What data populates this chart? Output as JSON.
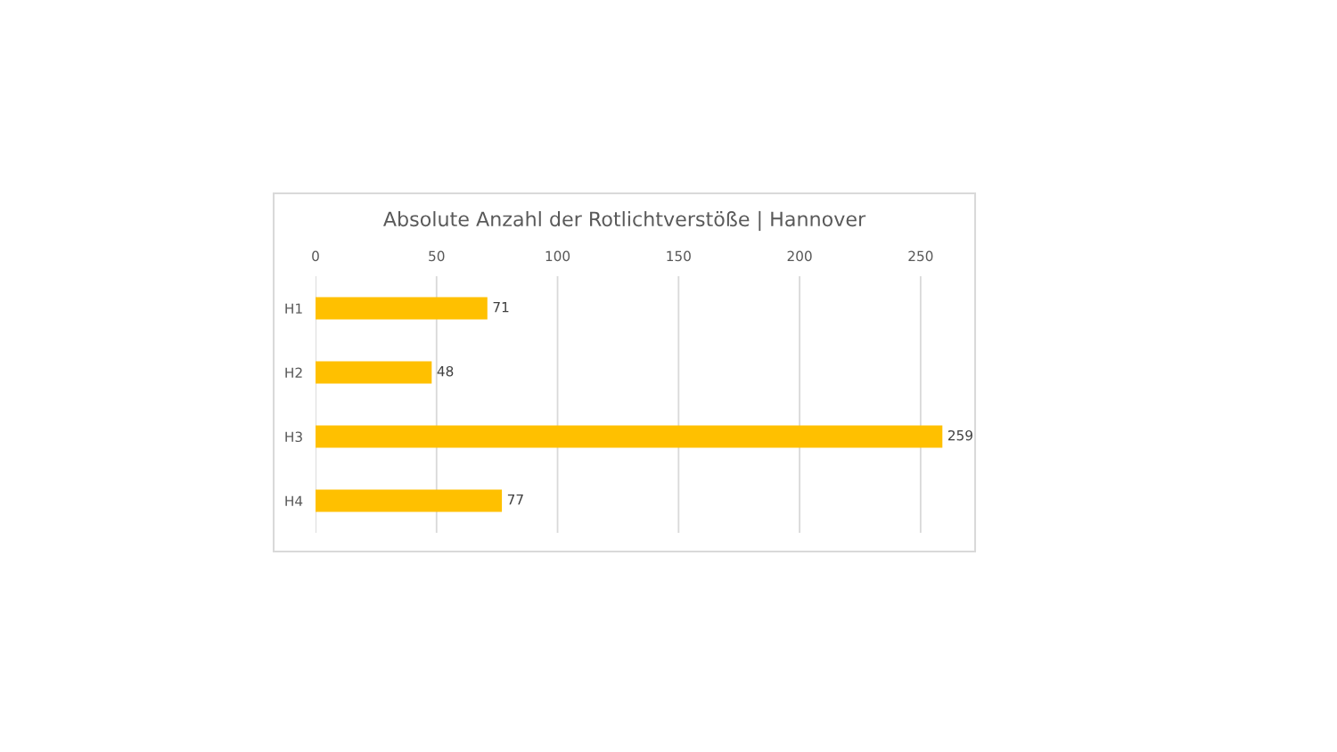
{
  "chart_data": {
    "type": "bar",
    "orientation": "horizontal",
    "title": "Absolute Anzahl der Rotlichtverstöße | Hannover",
    "categories": [
      "H1",
      "H2",
      "H3",
      "H4"
    ],
    "values": [
      71,
      48,
      259,
      77
    ],
    "color": "#ffc000",
    "xlim": [
      0,
      260
    ],
    "xticks": [
      0,
      50,
      100,
      150,
      200,
      250
    ],
    "grid": "x",
    "data_labels": true
  }
}
